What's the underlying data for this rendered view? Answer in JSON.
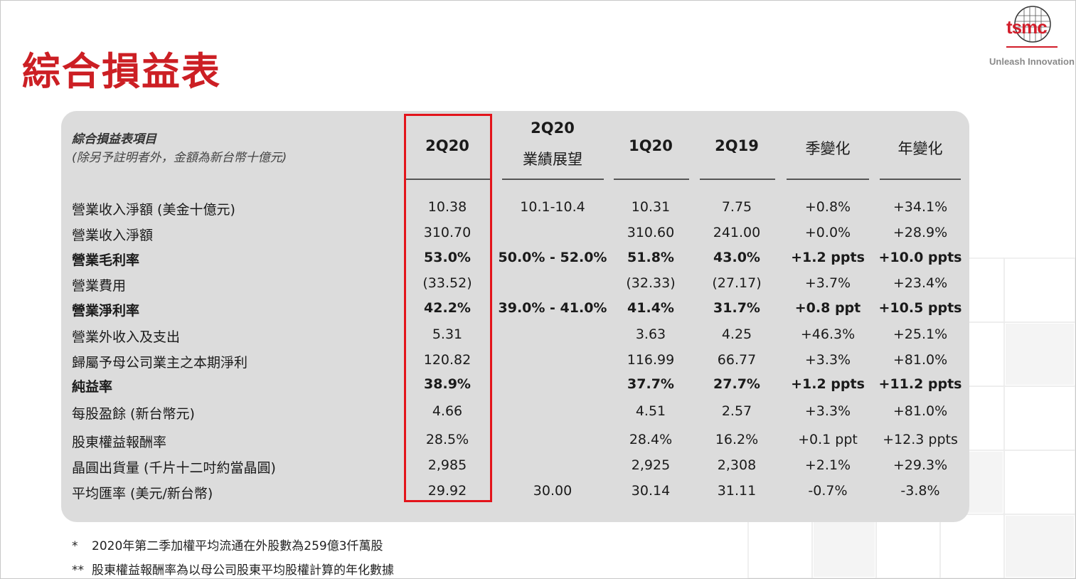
{
  "title": "綜合損益表",
  "logo": {
    "text": "tsmc",
    "tagline": "Unleash Innovation"
  },
  "table": {
    "header_item": "綜合損益表項目",
    "header_note": "(除另予註明者外，金額為新台幣十億元)",
    "columns": [
      {
        "label": "2Q20",
        "label2": ""
      },
      {
        "label": "2Q20",
        "label2": "業績展望"
      },
      {
        "label": "1Q20",
        "label2": ""
      },
      {
        "label": "2Q19",
        "label2": ""
      },
      {
        "label": "季變化",
        "label2": ""
      },
      {
        "label": "年變化",
        "label2": ""
      }
    ],
    "rows": [
      {
        "label": "營業收入淨額 (美金十億元)",
        "bold": false,
        "values": [
          "10.38",
          "10.1-10.4",
          "10.31",
          "7.75",
          "+0.8%",
          "+34.1%"
        ]
      },
      {
        "label": "營業收入淨額",
        "bold": false,
        "values": [
          "310.70",
          "",
          "310.60",
          "241.00",
          "+0.0%",
          "+28.9%"
        ]
      },
      {
        "label": "營業毛利率",
        "bold": true,
        "values": [
          "53.0%",
          "50.0% - 52.0%",
          "51.8%",
          "43.0%",
          "+1.2 ppts",
          "+10.0 ppts"
        ]
      },
      {
        "label": "營業費用",
        "bold": false,
        "values": [
          "(33.52)",
          "",
          "(32.33)",
          "(27.17)",
          "+3.7%",
          "+23.4%"
        ]
      },
      {
        "label": "營業淨利率",
        "bold": true,
        "values": [
          "42.2%",
          "39.0% - 41.0%",
          "41.4%",
          "31.7%",
          "+0.8 ppt",
          "+10.5 ppts"
        ]
      },
      {
        "label": "營業外收入及支出",
        "bold": false,
        "values": [
          "5.31",
          "",
          "3.63",
          "4.25",
          "+46.3%",
          "+25.1%"
        ]
      },
      {
        "label": "歸屬予母公司業主之本期淨利",
        "bold": false,
        "values": [
          "120.82",
          "",
          "116.99",
          "66.77",
          "+3.3%",
          "+81.0%"
        ]
      },
      {
        "label": "純益率",
        "bold": true,
        "values": [
          "38.9%",
          "",
          "37.7%",
          "27.7%",
          "+1.2 ppts",
          "+11.2 ppts"
        ]
      },
      {
        "label": "每股盈餘 (新台幣元)",
        "bold": false,
        "values": [
          "4.66",
          "",
          "4.51",
          "2.57",
          "+3.3%",
          "+81.0%"
        ]
      },
      {
        "label": "股東權益報酬率",
        "bold": false,
        "values": [
          "28.5%",
          "",
          "28.4%",
          "16.2%",
          "+0.1 ppt",
          "+12.3 ppts"
        ]
      },
      {
        "label": "晶圓出貨量 (千片十二吋約當晶圓)",
        "bold": false,
        "values": [
          "2,985",
          "",
          "2,925",
          "2,308",
          "+2.1%",
          "+29.3%"
        ]
      },
      {
        "label": "平均匯率 (美元/新台幣)",
        "bold": false,
        "values": [
          "29.92",
          "30.00",
          "30.14",
          "31.11",
          "-0.7%",
          "-3.8%"
        ]
      }
    ]
  },
  "notes": [
    {
      "mark": "*",
      "text": "2020年第二季加權平均流通在外股數為259億3仟萬股"
    },
    {
      "mark": "**",
      "text": "股東權益報酬率為以母公司股東平均股權計算的年化數據"
    }
  ],
  "colors": {
    "accent": "#cc1f24",
    "highlight_box": "#e3141b",
    "panel": "#dcdcdc"
  }
}
